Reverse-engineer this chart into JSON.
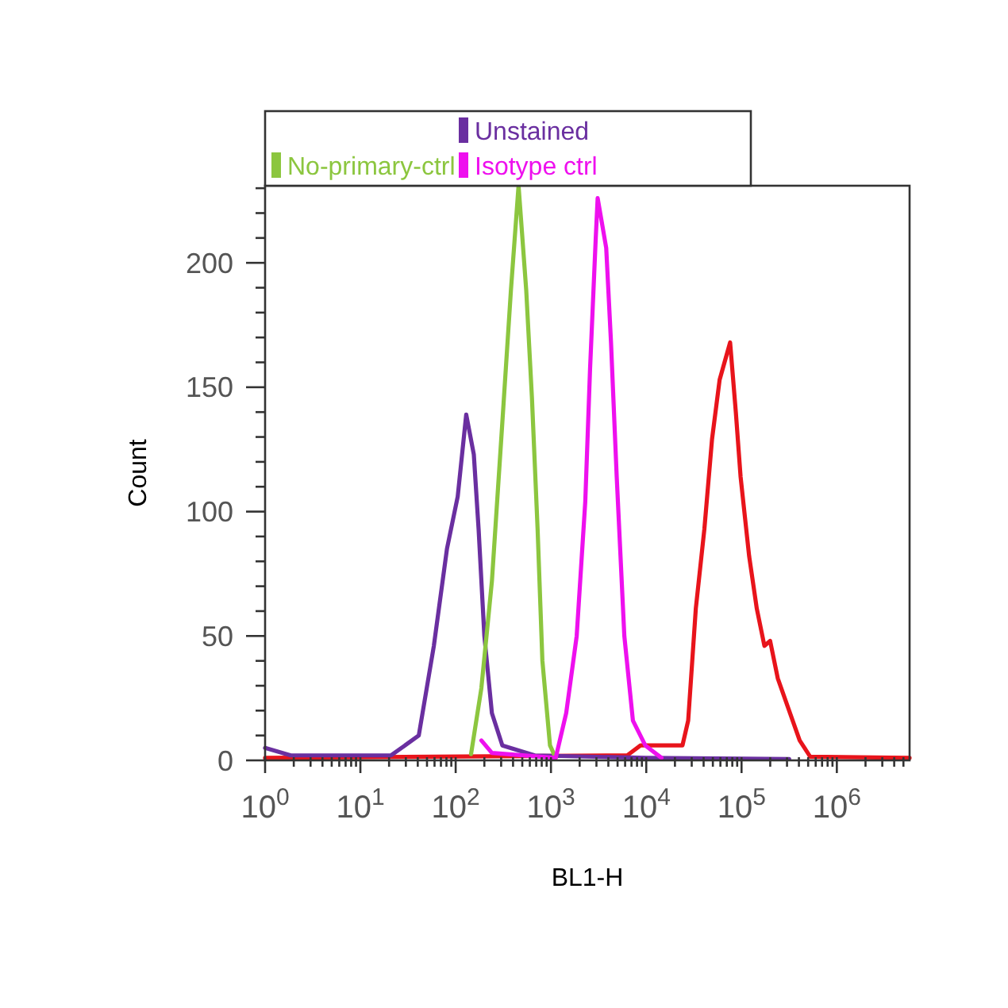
{
  "chart_data": {
    "type": "line",
    "xlabel": "BL1-H",
    "ylabel": "Count",
    "log": "x",
    "legend": "top left",
    "grid": false,
    "marker": "none",
    "line_style": "solid",
    "xlim": [
      1,
      5800000
    ],
    "ylim": [
      0,
      231
    ],
    "xticks": [
      {
        "value": 1,
        "label": "10$^{0}$"
      },
      {
        "value": 2,
        "label": null
      },
      {
        "value": 3,
        "label": null
      },
      {
        "value": 4,
        "label": null
      },
      {
        "value": 5,
        "label": null
      },
      {
        "value": 6,
        "label": null
      },
      {
        "value": 7,
        "label": null
      },
      {
        "value": 8,
        "label": null
      },
      {
        "value": 9,
        "label": null
      },
      {
        "value": 10,
        "label": "10$^{1}$"
      },
      {
        "value": 20,
        "label": null
      },
      {
        "value": 30,
        "label": null
      },
      {
        "value": 40,
        "label": null
      },
      {
        "value": 50,
        "label": null
      },
      {
        "value": 60,
        "label": null
      },
      {
        "value": 70,
        "label": null
      },
      {
        "value": 80,
        "label": null
      },
      {
        "value": 90,
        "label": null
      },
      {
        "value": 100,
        "label": "10$^{2}$"
      },
      {
        "value": 200,
        "label": null
      },
      {
        "value": 300,
        "label": null
      },
      {
        "value": 400,
        "label": null
      },
      {
        "value": 500,
        "label": null
      },
      {
        "value": 600,
        "label": null
      },
      {
        "value": 700,
        "label": null
      },
      {
        "value": 800,
        "label": null
      },
      {
        "value": 900,
        "label": null
      },
      {
        "value": 1000,
        "label": "10$^{3}$"
      },
      {
        "value": 2000,
        "label": null
      },
      {
        "value": 3000,
        "label": null
      },
      {
        "value": 4000,
        "label": null
      },
      {
        "value": 5000,
        "label": null
      },
      {
        "value": 6000,
        "label": null
      },
      {
        "value": 7000,
        "label": null
      },
      {
        "value": 8000,
        "label": null
      },
      {
        "value": 9000,
        "label": null
      },
      {
        "value": 10000,
        "label": "10$^{4}$"
      },
      {
        "value": 20000,
        "label": null
      },
      {
        "value": 30000,
        "label": null
      },
      {
        "value": 40000,
        "label": null
      },
      {
        "value": 50000,
        "label": null
      },
      {
        "value": 60000,
        "label": null
      },
      {
        "value": 70000,
        "label": null
      },
      {
        "value": 80000,
        "label": null
      },
      {
        "value": 90000,
        "label": null
      },
      {
        "value": 100000,
        "label": "10$^{5}$"
      },
      {
        "value": 200000,
        "label": null
      },
      {
        "value": 300000,
        "label": null
      },
      {
        "value": 400000,
        "label": null
      },
      {
        "value": 500000,
        "label": null
      },
      {
        "value": 600000,
        "label": null
      },
      {
        "value": 700000,
        "label": null
      },
      {
        "value": 800000,
        "label": null
      },
      {
        "value": 900000,
        "label": null
      },
      {
        "value": 1000000,
        "label": "10$^{6}$"
      },
      {
        "value": 2000000,
        "label": null
      },
      {
        "value": 3000000,
        "label": null
      },
      {
        "value": 4000000,
        "label": null
      },
      {
        "value": 5000000,
        "label": null
      }
    ],
    "yticks": [
      0,
      {
        "value": 10,
        "label": null
      },
      {
        "value": 20,
        "label": null
      },
      {
        "value": 30,
        "label": null
      },
      {
        "value": 40,
        "label": null
      },
      50,
      {
        "value": 60,
        "label": null
      },
      {
        "value": 70,
        "label": null
      },
      {
        "value": 80,
        "label": null
      },
      {
        "value": 90,
        "label": null
      },
      100,
      {
        "value": 110,
        "label": null
      },
      {
        "value": 120,
        "label": null
      },
      {
        "value": 130,
        "label": null
      },
      {
        "value": 140,
        "label": null
      },
      150,
      {
        "value": 160,
        "label": null
      },
      {
        "value": 170,
        "label": null
      },
      {
        "value": 180,
        "label": null
      },
      {
        "value": 190,
        "label": null
      },
      200,
      {
        "value": 210,
        "label": null
      },
      {
        "value": 220,
        "label": null
      },
      {
        "value": 230,
        "label": null
      }
    ],
    "series": [
      {
        "color": "#e8141b",
        "x": [
          1,
          6310,
          8710,
          23988,
          27542,
          33113,
          40738,
          48978,
          58884,
          75858,
          87096,
          97724,
          120226,
          144544,
          173780,
          199526,
          239883,
          309030,
          407380,
          524807,
          5800000
        ],
        "values": [
          1,
          2,
          6,
          6,
          16,
          61,
          93,
          129,
          153,
          168,
          140,
          114,
          82,
          61,
          46,
          48,
          33,
          21,
          8,
          1.5,
          1
        ]
      },
      {
        "name": "Unstained",
        "color": "#6a2fa0",
        "x": [
          1,
          1.86,
          21,
          41,
          59,
          81,
          105,
          129,
          155,
          174,
          200,
          240,
          309,
          676,
          10000,
          316000
        ],
        "values": [
          5,
          2,
          2,
          10,
          46,
          85,
          106,
          139,
          123,
          93,
          50,
          19,
          6,
          2,
          1,
          0.5
        ]
      },
      {
        "name": "No-primary-ctrl",
        "color": "#8cc63f",
        "x": [
          145,
          186,
          240,
          309,
          380,
          457,
          550,
          631,
          724,
          813,
          977,
          1122
        ],
        "values": [
          2.5,
          29,
          72,
          136,
          189,
          231,
          189,
          146,
          93,
          40,
          6,
          1
        ]
      },
      {
        "name": "Isotype ctrl",
        "color": "#ee10ee",
        "x": [
          186,
          240,
          1122,
          1445,
          1862,
          2291,
          2570,
          2951,
          3090,
          3800,
          4266,
          4898,
          5888,
          7244,
          9772,
          14454
        ],
        "values": [
          8,
          3,
          1,
          19,
          50,
          104,
          157,
          210,
          226,
          206,
          168,
          114,
          50,
          16,
          6,
          1
        ]
      }
    ]
  }
}
